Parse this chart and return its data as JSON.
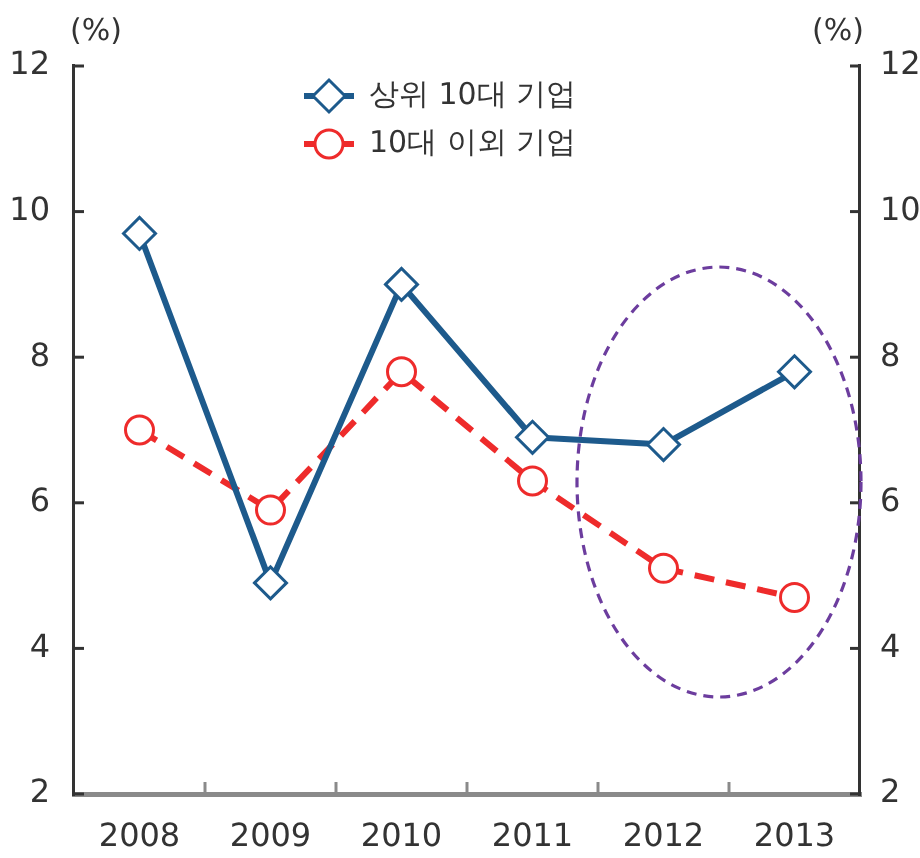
{
  "chart_data": {
    "type": "line",
    "categories": [
      "2008",
      "2009",
      "2010",
      "2011",
      "2012",
      "2013"
    ],
    "series": [
      {
        "name": "상위 10대 기업",
        "color": "#1d5a8c",
        "marker": "diamond",
        "line_style": "solid",
        "values": [
          9.7,
          4.9,
          9.0,
          6.9,
          6.8,
          7.8
        ]
      },
      {
        "name": "10대 이외 기업",
        "color": "#ee2b2b",
        "marker": "circle",
        "line_style": "dashed",
        "values": [
          7.0,
          5.9,
          7.8,
          6.3,
          5.1,
          4.7
        ]
      }
    ],
    "ylabel": "(%)",
    "y2label": "(%)",
    "ylim": [
      2,
      12
    ],
    "yticks": [
      2,
      4,
      6,
      8,
      10,
      12
    ],
    "y2lim": [
      2,
      12
    ],
    "y2ticks": [
      2,
      4,
      6,
      8,
      10,
      12
    ],
    "legend": "top"
  }
}
